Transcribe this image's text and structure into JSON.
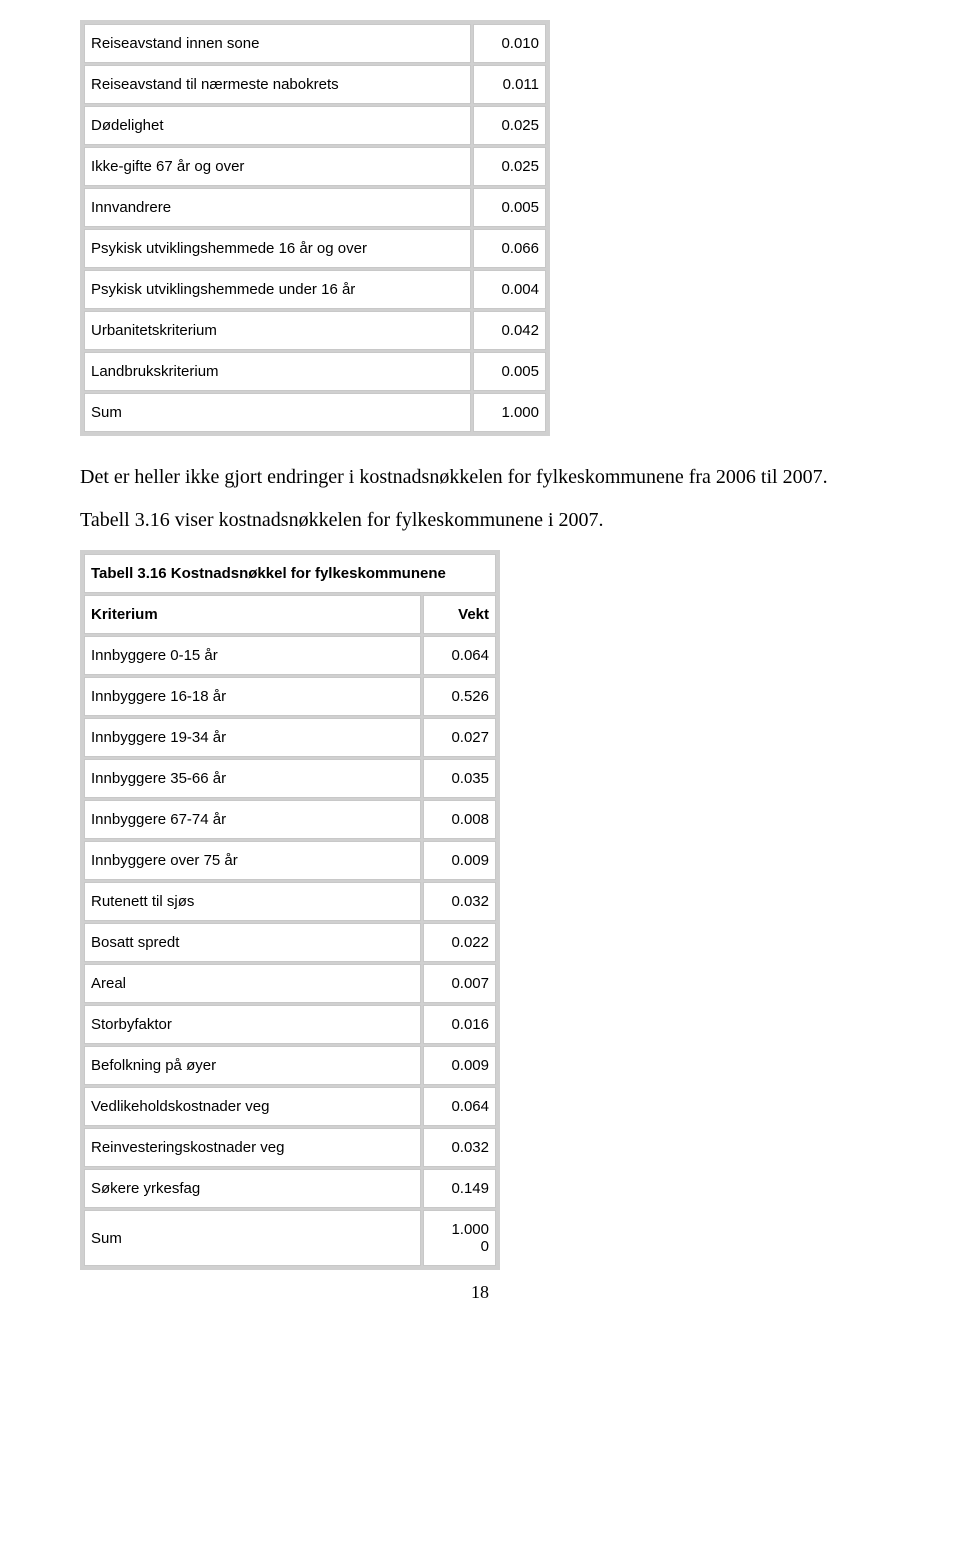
{
  "colors": {
    "background": "#ffffff",
    "table_border": "#d0d0d0",
    "cell_border": "#c8c8c8",
    "text": "#000000"
  },
  "fonts": {
    "table_family": "Arial",
    "table_size_pt": 11,
    "body_family": "Times New Roman",
    "body_size_pt": 15
  },
  "table1": {
    "rows": [
      {
        "label": "Reiseavstand innen sone",
        "value": "0.010"
      },
      {
        "label": "Reiseavstand til nærmeste nabokrets",
        "value": "0.011"
      },
      {
        "label": "Dødelighet",
        "value": "0.025"
      },
      {
        "label": "Ikke-gifte 67 år og over",
        "value": "0.025"
      },
      {
        "label": "Innvandrere",
        "value": "0.005"
      },
      {
        "label": "Psykisk utviklingshemmede 16 år og over",
        "value": "0.066"
      },
      {
        "label": "Psykisk utviklingshemmede under 16 år",
        "value": "0.004"
      },
      {
        "label": "Urbanitetskriterium",
        "value": "0.042"
      },
      {
        "label": "Landbrukskriterium",
        "value": "0.005"
      },
      {
        "label": "Sum",
        "value": "1.000"
      }
    ]
  },
  "paragraph": "Det er heller ikke gjort endringer i kostnadsnøkkelen for fylkeskommunene fra 2006 til 2007.",
  "caption": "Tabell 3.16 viser kostnadsnøkkelen for fylkeskommunene i 2007.",
  "table2": {
    "title": "Tabell 3.16 Kostnadsnøkkel for fylkeskommunene",
    "col_label": "Kriterium",
    "col_value": "Vekt",
    "rows": [
      {
        "label": "Innbyggere 0-15 år",
        "value": "0.064"
      },
      {
        "label": "Innbyggere 16-18 år",
        "value": "0.526"
      },
      {
        "label": "Innbyggere 19-34 år",
        "value": "0.027"
      },
      {
        "label": "Innbyggere 35-66 år",
        "value": "0.035"
      },
      {
        "label": "Innbyggere 67-74 år",
        "value": "0.008"
      },
      {
        "label": "Innbyggere over 75 år",
        "value": "0.009"
      },
      {
        "label": "Rutenett til sjøs",
        "value": "0.032"
      },
      {
        "label": "Bosatt spredt",
        "value": "0.022"
      },
      {
        "label": "Areal",
        "value": "0.007"
      },
      {
        "label": "Storbyfaktor",
        "value": "0.016"
      },
      {
        "label": "Befolkning på øyer",
        "value": "0.009"
      },
      {
        "label": "Vedlikeholdskostnader veg",
        "value": "0.064"
      },
      {
        "label": "Reinvesteringskostnader veg",
        "value": "0.032"
      },
      {
        "label": "Søkere yrkesfag",
        "value": "0.149"
      }
    ],
    "sum_label": "Sum",
    "sum_value": "1.000",
    "sum_extra": "0"
  },
  "page_number": "18"
}
